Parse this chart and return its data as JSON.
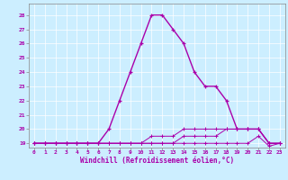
{
  "xlabel": "Windchill (Refroidissement éolien,°C)",
  "background_color": "#cceeff",
  "line_color": "#aa00aa",
  "x": [
    0,
    1,
    2,
    3,
    4,
    5,
    6,
    7,
    8,
    9,
    10,
    11,
    12,
    13,
    14,
    15,
    16,
    17,
    18,
    19,
    20,
    21,
    22,
    23
  ],
  "line1": [
    19,
    19,
    19,
    19,
    19,
    19,
    19,
    20,
    22,
    24,
    26,
    28,
    28,
    27,
    26,
    24,
    23,
    23,
    22,
    20,
    20,
    20,
    19,
    19
  ],
  "line2": [
    19,
    19,
    19,
    19,
    19,
    19,
    19,
    19,
    19,
    19,
    19,
    19,
    19,
    19,
    19.5,
    19.5,
    19.5,
    19.5,
    20,
    20,
    20,
    20,
    19,
    19
  ],
  "line3": [
    19,
    19,
    19,
    19,
    19,
    19,
    19,
    19,
    19,
    19,
    19,
    19,
    19,
    19,
    19,
    19,
    19,
    19,
    19,
    19,
    19,
    19.5,
    18.8,
    19
  ],
  "line4": [
    19,
    19,
    19,
    19,
    19,
    19,
    19,
    19,
    19,
    19,
    19,
    19.5,
    19.5,
    19.5,
    20,
    20,
    20,
    20,
    20,
    20,
    20,
    20,
    19,
    19
  ],
  "ylim": [
    18.7,
    28.8
  ],
  "xlim": [
    -0.5,
    23.5
  ],
  "yticks": [
    19,
    20,
    21,
    22,
    23,
    24,
    25,
    26,
    27,
    28
  ],
  "xticks": [
    0,
    1,
    2,
    3,
    4,
    5,
    6,
    7,
    8,
    9,
    10,
    11,
    12,
    13,
    14,
    15,
    16,
    17,
    18,
    19,
    20,
    21,
    22,
    23
  ]
}
